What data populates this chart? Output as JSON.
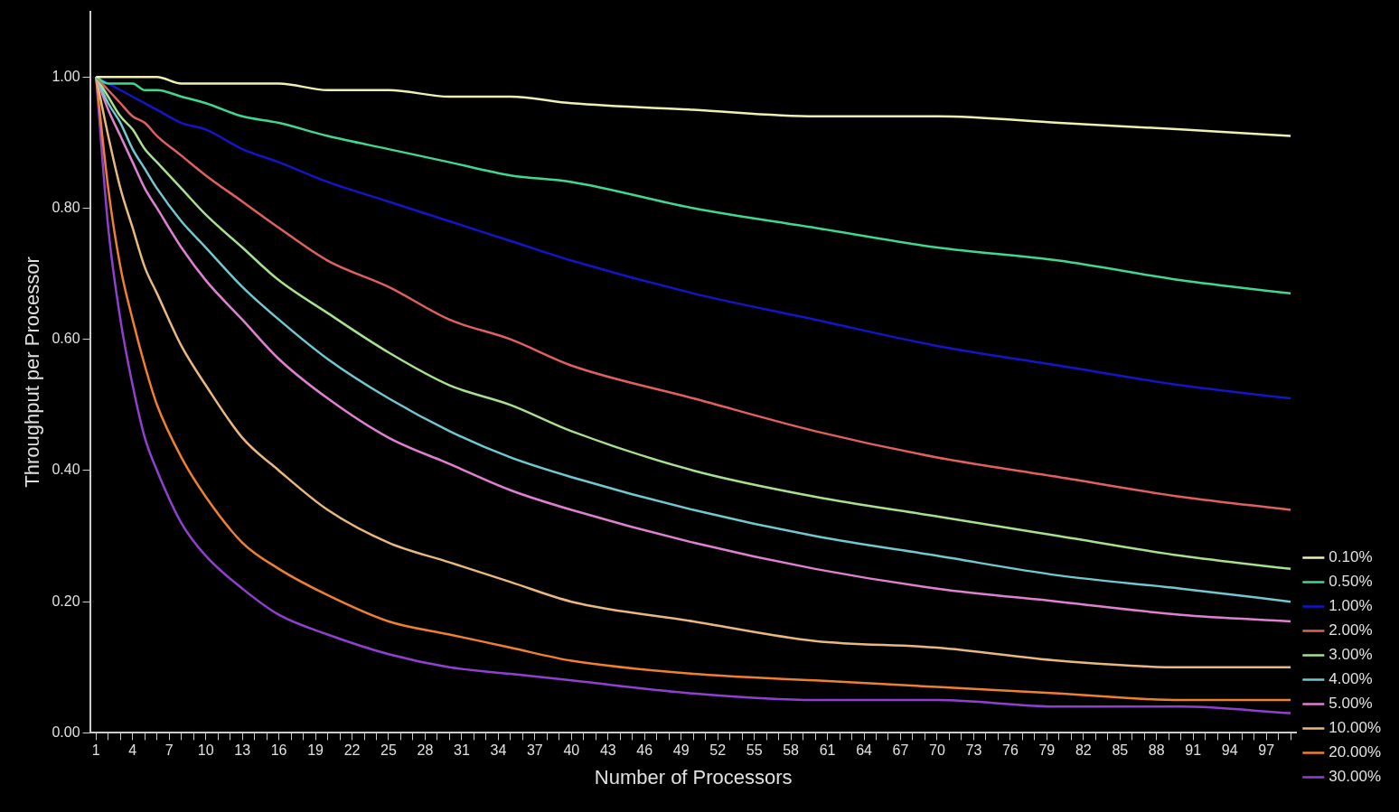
{
  "chart_data": {
    "type": "line",
    "xlabel": "Number of Processors",
    "ylabel": "Throughput per Processor",
    "x": [
      1,
      2,
      3,
      4,
      5,
      6,
      8,
      10,
      13,
      16,
      20,
      25,
      30,
      35,
      40,
      50,
      60,
      70,
      80,
      90,
      99
    ],
    "xlim": [
      0.5,
      99.5
    ],
    "xticks": [
      {
        "value": 1,
        "label": "1"
      },
      {
        "value": 2,
        "label": null
      },
      {
        "value": 3,
        "label": null
      },
      {
        "value": 4,
        "label": "4"
      },
      {
        "value": 5,
        "label": null
      },
      {
        "value": 6,
        "label": null
      },
      {
        "value": 7,
        "label": "7"
      },
      {
        "value": 8,
        "label": null
      },
      {
        "value": 9,
        "label": null
      },
      {
        "value": 10,
        "label": "10"
      },
      {
        "value": 11,
        "label": null
      },
      {
        "value": 12,
        "label": null
      },
      {
        "value": 13,
        "label": "13"
      },
      {
        "value": 14,
        "label": null
      },
      {
        "value": 15,
        "label": null
      },
      {
        "value": 16,
        "label": "16"
      },
      {
        "value": 17,
        "label": null
      },
      {
        "value": 18,
        "label": null
      },
      {
        "value": 19,
        "label": "19"
      },
      {
        "value": 20,
        "label": null
      },
      {
        "value": 21,
        "label": null
      },
      {
        "value": 22,
        "label": "22"
      },
      {
        "value": 23,
        "label": null
      },
      {
        "value": 24,
        "label": null
      },
      {
        "value": 25,
        "label": "25"
      },
      {
        "value": 26,
        "label": null
      },
      {
        "value": 27,
        "label": null
      },
      {
        "value": 28,
        "label": "28"
      },
      {
        "value": 29,
        "label": null
      },
      {
        "value": 30,
        "label": null
      },
      {
        "value": 31,
        "label": "31"
      },
      {
        "value": 32,
        "label": null
      },
      {
        "value": 33,
        "label": null
      },
      {
        "value": 34,
        "label": "34"
      },
      {
        "value": 35,
        "label": null
      },
      {
        "value": 36,
        "label": null
      },
      {
        "value": 37,
        "label": "37"
      },
      {
        "value": 38,
        "label": null
      },
      {
        "value": 39,
        "label": null
      },
      {
        "value": 40,
        "label": "40"
      },
      {
        "value": 41,
        "label": null
      },
      {
        "value": 42,
        "label": null
      },
      {
        "value": 43,
        "label": "43"
      },
      {
        "value": 44,
        "label": null
      },
      {
        "value": 45,
        "label": null
      },
      {
        "value": 46,
        "label": "46"
      },
      {
        "value": 47,
        "label": null
      },
      {
        "value": 48,
        "label": null
      },
      {
        "value": 49,
        "label": "49"
      },
      {
        "value": 50,
        "label": null
      },
      {
        "value": 51,
        "label": null
      },
      {
        "value": 52,
        "label": "52"
      },
      {
        "value": 53,
        "label": null
      },
      {
        "value": 54,
        "label": null
      },
      {
        "value": 55,
        "label": "55"
      },
      {
        "value": 56,
        "label": null
      },
      {
        "value": 57,
        "label": null
      },
      {
        "value": 58,
        "label": "58"
      },
      {
        "value": 59,
        "label": null
      },
      {
        "value": 60,
        "label": null
      },
      {
        "value": 61,
        "label": "61"
      },
      {
        "value": 62,
        "label": null
      },
      {
        "value": 63,
        "label": null
      },
      {
        "value": 64,
        "label": "64"
      },
      {
        "value": 65,
        "label": null
      },
      {
        "value": 66,
        "label": null
      },
      {
        "value": 67,
        "label": "67"
      },
      {
        "value": 68,
        "label": null
      },
      {
        "value": 69,
        "label": null
      },
      {
        "value": 70,
        "label": "70"
      },
      {
        "value": 71,
        "label": null
      },
      {
        "value": 72,
        "label": null
      },
      {
        "value": 73,
        "label": "73"
      },
      {
        "value": 74,
        "label": null
      },
      {
        "value": 75,
        "label": null
      },
      {
        "value": 76,
        "label": "76"
      },
      {
        "value": 77,
        "label": null
      },
      {
        "value": 78,
        "label": null
      },
      {
        "value": 79,
        "label": "79"
      },
      {
        "value": 80,
        "label": null
      },
      {
        "value": 81,
        "label": null
      },
      {
        "value": 82,
        "label": "82"
      },
      {
        "value": 83,
        "label": null
      },
      {
        "value": 84,
        "label": null
      },
      {
        "value": 85,
        "label": "85"
      },
      {
        "value": 86,
        "label": null
      },
      {
        "value": 87,
        "label": null
      },
      {
        "value": 88,
        "label": "88"
      },
      {
        "value": 89,
        "label": null
      },
      {
        "value": 90,
        "label": null
      },
      {
        "value": 91,
        "label": "91"
      },
      {
        "value": 92,
        "label": null
      },
      {
        "value": 93,
        "label": null
      },
      {
        "value": 94,
        "label": "94"
      },
      {
        "value": 95,
        "label": null
      },
      {
        "value": 96,
        "label": null
      },
      {
        "value": 97,
        "label": "97"
      },
      {
        "value": 98,
        "label": null
      },
      {
        "value": 99,
        "label": null
      }
    ],
    "ylim": [
      0,
      1.1
    ],
    "yticks": [
      {
        "value": 0,
        "label": "0.00"
      },
      {
        "value": 0.2,
        "label": "0.20"
      },
      {
        "value": 0.4,
        "label": "0.40"
      },
      {
        "value": 0.6,
        "label": "0.60"
      },
      {
        "value": 0.8,
        "label": "0.80"
      },
      {
        "value": 1,
        "label": "1.00"
      }
    ],
    "grid": false,
    "legend": "bottom right",
    "marker": "none",
    "series": [
      {
        "name": "0.10%",
        "color": "#f0f0b0",
        "values": [
          1,
          1,
          1,
          1,
          1,
          1,
          0.99,
          0.99,
          0.99,
          0.99,
          0.98,
          0.98,
          0.97,
          0.97,
          0.96,
          0.95,
          0.94,
          0.94,
          0.93,
          0.92,
          0.91
        ]
      },
      {
        "name": "0.50%",
        "color": "#40d890",
        "values": [
          1,
          0.99,
          0.99,
          0.99,
          0.98,
          0.98,
          0.97,
          0.96,
          0.94,
          0.93,
          0.91,
          0.89,
          0.87,
          0.85,
          0.84,
          0.8,
          0.77,
          0.74,
          0.72,
          0.69,
          0.67
        ]
      },
      {
        "name": "1.00%",
        "color": "#1414c8",
        "values": [
          1,
          0.99,
          0.98,
          0.97,
          0.96,
          0.95,
          0.93,
          0.92,
          0.89,
          0.87,
          0.84,
          0.81,
          0.78,
          0.75,
          0.72,
          0.67,
          0.63,
          0.59,
          0.56,
          0.53,
          0.51
        ]
      },
      {
        "name": "2.00%",
        "color": "#e06060",
        "values": [
          1,
          0.98,
          0.96,
          0.94,
          0.93,
          0.91,
          0.88,
          0.85,
          0.81,
          0.77,
          0.72,
          0.68,
          0.63,
          0.6,
          0.56,
          0.51,
          0.46,
          0.42,
          0.39,
          0.36,
          0.34
        ]
      },
      {
        "name": "3.00%",
        "color": "#a8e090",
        "values": [
          1,
          0.97,
          0.94,
          0.92,
          0.89,
          0.87,
          0.83,
          0.79,
          0.74,
          0.69,
          0.64,
          0.58,
          0.53,
          0.5,
          0.46,
          0.4,
          0.36,
          0.33,
          0.3,
          0.27,
          0.25
        ]
      },
      {
        "name": "4.00%",
        "color": "#70c8d0",
        "values": [
          1,
          0.96,
          0.93,
          0.89,
          0.86,
          0.83,
          0.78,
          0.74,
          0.68,
          0.63,
          0.57,
          0.51,
          0.46,
          0.42,
          0.39,
          0.34,
          0.3,
          0.27,
          0.24,
          0.22,
          0.2
        ]
      },
      {
        "name": "5.00%",
        "color": "#e080d0",
        "values": [
          1,
          0.95,
          0.91,
          0.87,
          0.83,
          0.8,
          0.74,
          0.69,
          0.63,
          0.57,
          0.51,
          0.45,
          0.41,
          0.37,
          0.34,
          0.29,
          0.25,
          0.22,
          0.2,
          0.18,
          0.17
        ]
      },
      {
        "name": "10.00%",
        "color": "#e8b880",
        "values": [
          1,
          0.91,
          0.83,
          0.77,
          0.71,
          0.67,
          0.59,
          0.53,
          0.45,
          0.4,
          0.34,
          0.29,
          0.26,
          0.23,
          0.2,
          0.17,
          0.14,
          0.13,
          0.11,
          0.1,
          0.1
        ]
      },
      {
        "name": "20.00%",
        "color": "#f08030",
        "values": [
          1,
          0.83,
          0.71,
          0.63,
          0.56,
          0.5,
          0.42,
          0.36,
          0.29,
          0.25,
          0.21,
          0.17,
          0.15,
          0.13,
          0.11,
          0.09,
          0.08,
          0.07,
          0.06,
          0.05,
          0.05
        ]
      },
      {
        "name": "30.00%",
        "color": "#9040d0",
        "values": [
          1,
          0.77,
          0.63,
          0.53,
          0.45,
          0.4,
          0.32,
          0.27,
          0.22,
          0.18,
          0.15,
          0.12,
          0.1,
          0.09,
          0.08,
          0.06,
          0.05,
          0.05,
          0.04,
          0.04,
          0.03
        ]
      }
    ]
  }
}
